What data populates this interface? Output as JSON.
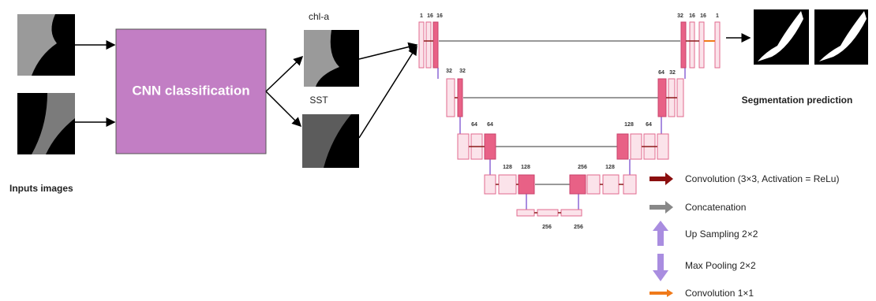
{
  "inputs": {
    "label": "Inputs images"
  },
  "classifier": {
    "label": "CNN classification"
  },
  "channels": {
    "chl": "chl-a",
    "sst": "SST"
  },
  "output": {
    "label": "Segmentation prediction"
  },
  "unet": {
    "levels": [
      {
        "left": [
          "1",
          "16",
          "16"
        ],
        "right": [
          "32",
          "16",
          "16",
          "1"
        ]
      },
      {
        "left": [
          "32",
          "32"
        ],
        "right": [
          "64",
          "32"
        ]
      },
      {
        "left": [
          "64",
          "64"
        ],
        "right": [
          "128",
          "64"
        ]
      },
      {
        "left": [
          "128",
          "128"
        ],
        "right": [
          "256",
          "128"
        ]
      },
      {
        "bottom": [
          "256",
          "256"
        ]
      }
    ]
  },
  "legend": [
    "Convolution (3×3, Activation = ReLu)",
    "Concatenation",
    "Up Sampling 2×2",
    "Max Pooling 2×2",
    "Convolution 1×1"
  ]
}
